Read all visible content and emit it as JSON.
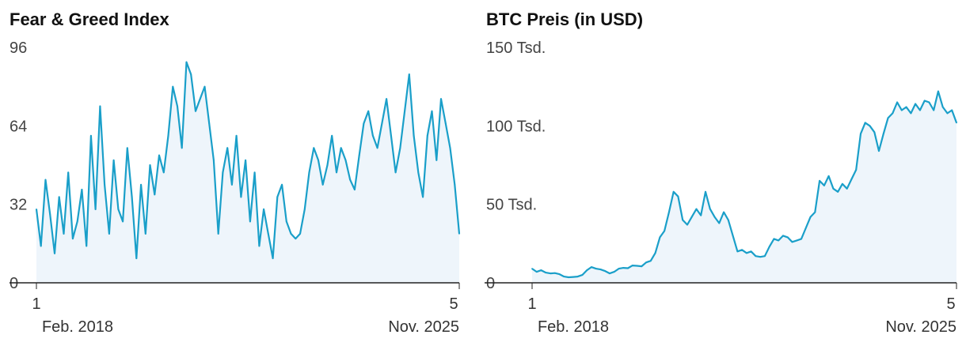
{
  "colors": {
    "line": "#1a9fc9",
    "area": "#eef5fb",
    "axis": "#222222",
    "text": "#444444"
  },
  "chart_data": [
    {
      "type": "area",
      "title": "Fear & Greed Index",
      "ylim": [
        0,
        96
      ],
      "yticks": [
        "96",
        "64",
        "32",
        "0"
      ],
      "ytick_values": [
        96,
        64,
        32,
        0
      ],
      "x_start": {
        "day": "1",
        "month": "Feb. 2018"
      },
      "x_end": {
        "day": "5",
        "month": "Nov. 2025"
      },
      "x_range": [
        0,
        93
      ],
      "series": [
        {
          "name": "Fear & Greed Index",
          "x": [
            0,
            1,
            2,
            3,
            4,
            5,
            6,
            7,
            8,
            9,
            10,
            11,
            12,
            13,
            14,
            15,
            16,
            17,
            18,
            19,
            20,
            21,
            22,
            23,
            24,
            25,
            26,
            27,
            28,
            29,
            30,
            31,
            32,
            33,
            34,
            35,
            36,
            37,
            38,
            39,
            40,
            41,
            42,
            43,
            44,
            45,
            46,
            47,
            48,
            49,
            50,
            51,
            52,
            53,
            54,
            55,
            56,
            57,
            58,
            59,
            60,
            61,
            62,
            63,
            64,
            65,
            66,
            67,
            68,
            69,
            70,
            71,
            72,
            73,
            74,
            75,
            76,
            77,
            78,
            79,
            80,
            81,
            82,
            83,
            84,
            85,
            86,
            87,
            88,
            89,
            90,
            91,
            92,
            93
          ],
          "values": [
            30,
            15,
            42,
            28,
            12,
            35,
            20,
            45,
            18,
            25,
            38,
            15,
            60,
            30,
            72,
            40,
            20,
            50,
            30,
            25,
            55,
            35,
            10,
            40,
            20,
            48,
            36,
            52,
            45,
            60,
            80,
            72,
            55,
            90,
            85,
            70,
            75,
            80,
            65,
            50,
            20,
            45,
            55,
            40,
            60,
            35,
            50,
            25,
            45,
            15,
            30,
            20,
            10,
            35,
            40,
            25,
            20,
            18,
            20,
            30,
            45,
            55,
            50,
            40,
            48,
            60,
            45,
            55,
            50,
            42,
            38,
            52,
            65,
            70,
            60,
            55,
            65,
            75,
            60,
            45,
            55,
            70,
            85,
            60,
            45,
            35,
            60,
            70,
            50,
            75,
            65,
            55,
            40,
            20
          ]
        }
      ]
    },
    {
      "type": "area",
      "title": "BTC Preis (in USD)",
      "ylim": [
        0,
        150000
      ],
      "yticks": [
        "150 Tsd.",
        "100 Tsd.",
        "50 Tsd.",
        "0"
      ],
      "ytick_values": [
        150000,
        100000,
        50000,
        0
      ],
      "x_start": {
        "day": "1",
        "month": "Feb. 2018"
      },
      "x_end": {
        "day": "5",
        "month": "Nov. 2025"
      },
      "x_range": [
        0,
        93
      ],
      "series": [
        {
          "name": "BTC",
          "x": [
            0,
            1,
            2,
            3,
            4,
            5,
            6,
            7,
            8,
            9,
            10,
            11,
            12,
            13,
            14,
            15,
            16,
            17,
            18,
            19,
            20,
            21,
            22,
            23,
            24,
            25,
            26,
            27,
            28,
            29,
            30,
            31,
            32,
            33,
            34,
            35,
            36,
            37,
            38,
            39,
            40,
            41,
            42,
            43,
            44,
            45,
            46,
            47,
            48,
            49,
            50,
            51,
            52,
            53,
            54,
            55,
            56,
            57,
            58,
            59,
            60,
            61,
            62,
            63,
            64,
            65,
            66,
            67,
            68,
            69,
            70,
            71,
            72,
            73,
            74,
            75,
            76,
            77,
            78,
            79,
            80,
            81,
            82,
            83,
            84,
            85,
            86,
            87,
            88,
            89,
            90,
            91,
            92,
            93
          ],
          "values": [
            9000,
            7000,
            8000,
            6500,
            6000,
            6200,
            5500,
            4000,
            3500,
            3700,
            4000,
            5000,
            8000,
            10000,
            9000,
            8500,
            7500,
            6000,
            7000,
            9000,
            9500,
            9300,
            11000,
            10800,
            10500,
            13000,
            14000,
            19000,
            29000,
            33000,
            45000,
            58000,
            55000,
            40000,
            37000,
            42000,
            47000,
            43000,
            58000,
            47000,
            42000,
            38000,
            45000,
            40000,
            30000,
            20000,
            21000,
            19000,
            20000,
            17000,
            16500,
            17000,
            23000,
            28000,
            27000,
            30000,
            29000,
            26000,
            27000,
            28000,
            35000,
            42000,
            45000,
            65000,
            62000,
            68000,
            60000,
            58000,
            63000,
            60000,
            66000,
            72000,
            95000,
            102000,
            100000,
            96000,
            84000,
            95000,
            105000,
            108000,
            115000,
            110000,
            112000,
            108000,
            114000,
            110000,
            116000,
            115000,
            110000,
            122000,
            112000,
            108000,
            110000,
            102000
          ]
        }
      ]
    }
  ]
}
